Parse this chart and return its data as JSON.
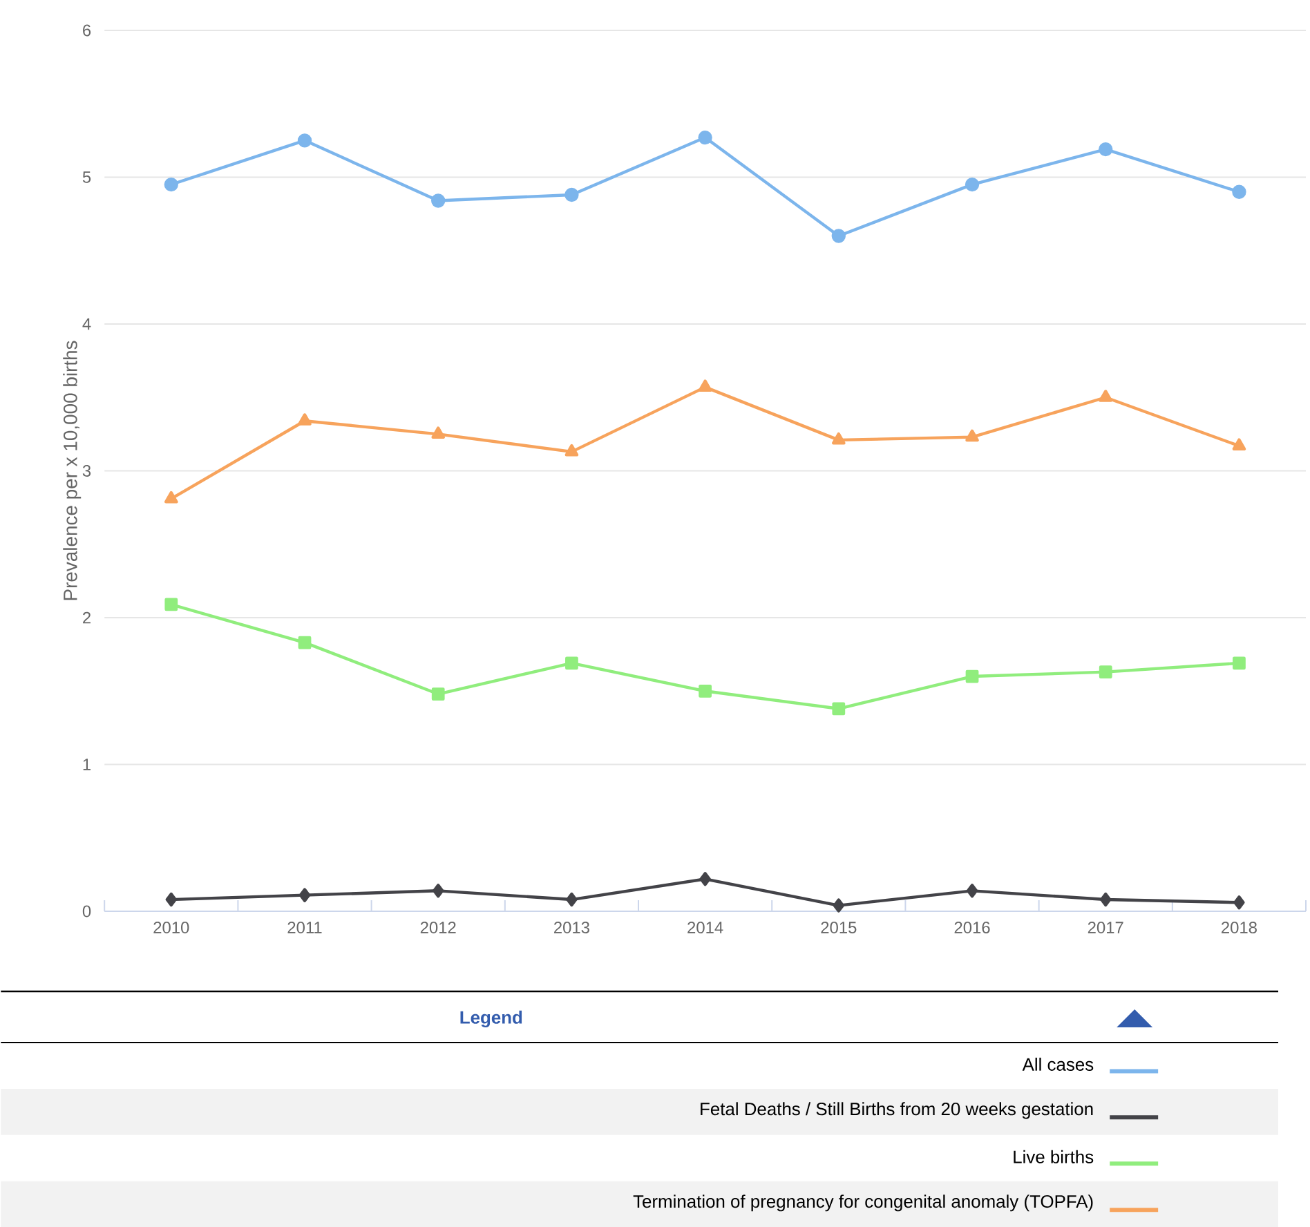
{
  "chart_data": {
    "type": "line",
    "ylabel": "Prevalence per x 10,000 births",
    "legend_title": "Legend",
    "categories": [
      "2010",
      "2011",
      "2012",
      "2013",
      "2014",
      "2015",
      "2016",
      "2017",
      "2018"
    ],
    "ylim": [
      0,
      6
    ],
    "yticks": [
      0,
      1,
      2,
      3,
      4,
      5,
      6
    ],
    "grid": "y",
    "legend": "bottom",
    "line_style": "solid",
    "series": [
      {
        "name": "All cases",
        "color": "#7cb5ec",
        "marker": "circle",
        "values": [
          4.95,
          5.25,
          4.84,
          4.88,
          5.27,
          4.6,
          4.95,
          5.19,
          4.9
        ]
      },
      {
        "name": "Fetal Deaths / Still Births from 20 weeks gestation",
        "color": "#434348",
        "marker": "diamond",
        "values": [
          0.08,
          0.11,
          0.14,
          0.08,
          0.22,
          0.04,
          0.14,
          0.08,
          0.06
        ]
      },
      {
        "name": "Live births",
        "color": "#90ed7d",
        "marker": "square",
        "values": [
          2.09,
          1.83,
          1.48,
          1.69,
          1.5,
          1.38,
          1.6,
          1.63,
          1.69
        ]
      },
      {
        "name": "Termination of pregnancy for congenital anomaly (TOPFA)",
        "color": "#f7a35c",
        "marker": "triangle",
        "values": [
          2.81,
          3.34,
          3.25,
          3.13,
          3.57,
          3.21,
          3.23,
          3.5,
          3.17
        ]
      }
    ]
  }
}
